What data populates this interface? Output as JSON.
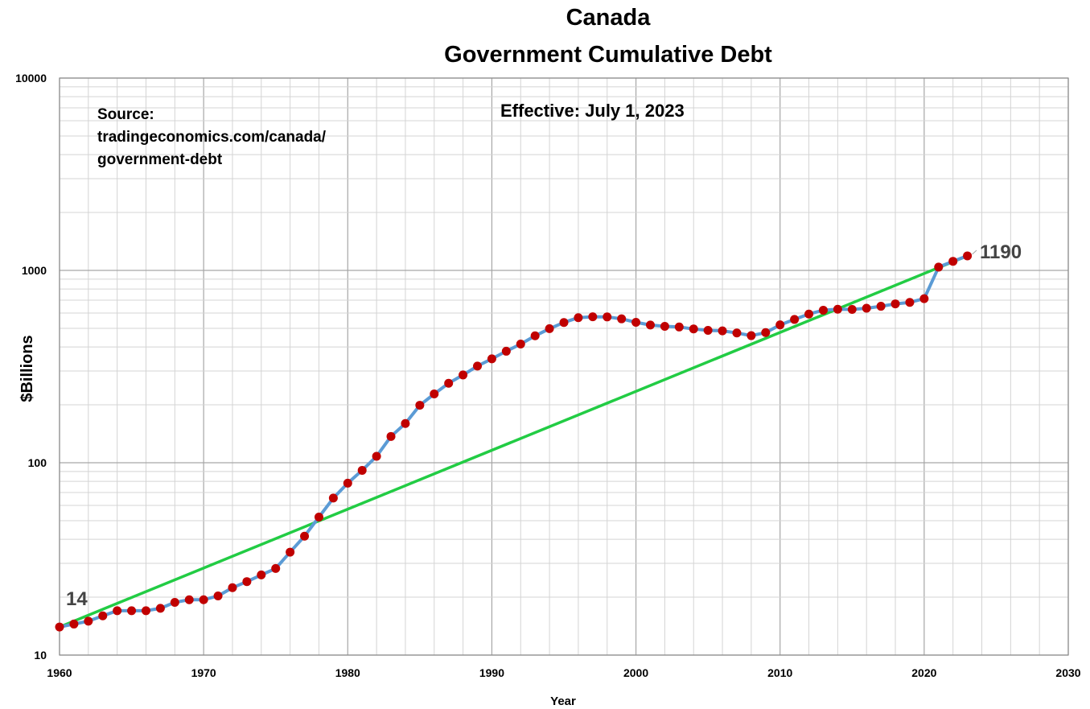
{
  "chart_data": {
    "type": "line",
    "title": "Canada",
    "subtitle": "Government Cumulative Debt",
    "xlabel": "Year",
    "ylabel": "$Billions",
    "xlim": [
      1960,
      2030
    ],
    "ylim": [
      10,
      10000
    ],
    "y_scale": "log",
    "x_ticks": [
      1960,
      1970,
      1980,
      1990,
      2000,
      2010,
      2020,
      2030
    ],
    "x_tick_labels": [
      "1960",
      "1970",
      "1980",
      "1990",
      "2000",
      "2010",
      "2020",
      "2030"
    ],
    "y_ticks": [
      10,
      100,
      1000,
      10000
    ],
    "y_tick_labels": [
      "10",
      "100",
      "1000",
      "10000"
    ],
    "grid": true,
    "legend": "none",
    "annotations": {
      "source_line1": "Source:",
      "source_line2": "tradingeconomics.com/canada/",
      "source_line3": "government-debt",
      "effective": "Effective: July 1, 2023",
      "start_label": "14",
      "end_label": "1190"
    },
    "colors": {
      "series_line": "#5b9bd5",
      "markers": "#c00000",
      "trend_line": "#22cc44"
    },
    "series": [
      {
        "x": [
          1960,
          1961,
          1962,
          1963,
          1964,
          1965,
          1966,
          1967,
          1968,
          1969,
          1970,
          1971,
          1972,
          1973,
          1974,
          1975,
          1976,
          1977,
          1978,
          1979,
          1980,
          1981,
          1982,
          1983,
          1984,
          1985,
          1986,
          1987,
          1988,
          1989,
          1990,
          1991,
          1992,
          1993,
          1994,
          1995,
          1996,
          1997,
          1998,
          1999,
          2000,
          2001,
          2002,
          2003,
          2004,
          2005,
          2006,
          2007,
          2008,
          2009,
          2010,
          2011,
          2012,
          2013,
          2014,
          2015,
          2016,
          2017,
          2018,
          2019,
          2020,
          2021,
          2022,
          2023
        ],
        "values": [
          14,
          14.5,
          15,
          16,
          17,
          17,
          17,
          17.5,
          18.8,
          19.4,
          19.4,
          20.3,
          22.4,
          24.1,
          26.1,
          28.2,
          34.3,
          41.5,
          52.2,
          65.5,
          78.3,
          91.3,
          108,
          137,
          160,
          199,
          228,
          259,
          286,
          318,
          347,
          380,
          414,
          457,
          498,
          536,
          568,
          574,
          573,
          560,
          537,
          520,
          512,
          508,
          496,
          488,
          485,
          473,
          458,
          475,
          521,
          556,
          593,
          621,
          628,
          627,
          636,
          651,
          670,
          682,
          713,
          1040,
          1115,
          1190
        ]
      },
      {
        "type": "trend",
        "x": [
          1960,
          2023
        ],
        "values": [
          14,
          1190
        ]
      }
    ]
  }
}
